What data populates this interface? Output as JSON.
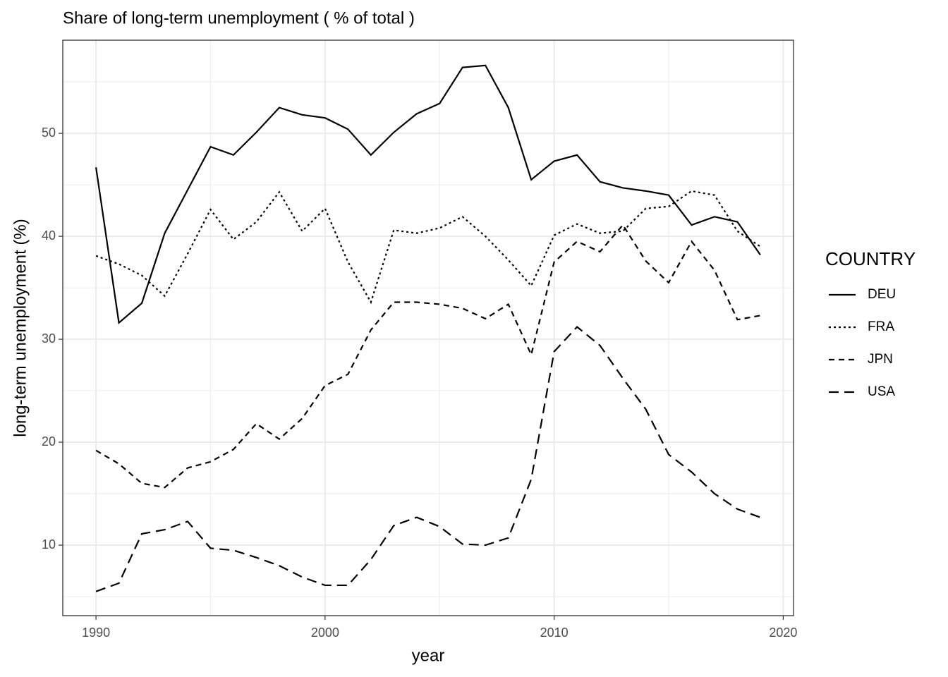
{
  "chart_data": {
    "type": "line",
    "title": "Share of long-term unemployment ( % of total )",
    "x_label": "year",
    "y_label": "long-term unemployment (%)",
    "legend_title": "COUNTRY",
    "legend_position": "right",
    "grid": true,
    "x": [
      1990,
      1991,
      1992,
      1993,
      1994,
      1995,
      1996,
      1997,
      1998,
      1999,
      2000,
      2001,
      2002,
      2003,
      2004,
      2005,
      2006,
      2007,
      2008,
      2009,
      2010,
      2011,
      2012,
      2013,
      2014,
      2015,
      2016,
      2017,
      2018,
      2019
    ],
    "xlim": [
      1988.55,
      2020.45
    ],
    "xticks": [
      1990,
      2000,
      2010,
      2020
    ],
    "xminor": [
      1995,
      2005,
      2015
    ],
    "ylim": [
      3.15,
      59.05
    ],
    "yticks": [
      10,
      20,
      30,
      40,
      50
    ],
    "yminor": [
      5,
      15,
      25,
      35,
      45,
      55
    ],
    "series": [
      {
        "name": "DEU",
        "color": "#000000",
        "dash": "solid",
        "values": [
          46.7,
          31.6,
          33.5,
          40.3,
          44.5,
          48.7,
          47.9,
          50.1,
          52.5,
          51.8,
          51.5,
          50.4,
          47.9,
          50.1,
          51.9,
          52.9,
          56.4,
          56.6,
          52.5,
          45.5,
          47.3,
          47.9,
          45.3,
          44.7,
          44.4,
          44.0,
          41.1,
          41.9,
          41.4,
          38.2
        ]
      },
      {
        "name": "FRA",
        "color": "#000000",
        "dash": "dotted",
        "values": [
          38.1,
          37.3,
          36.2,
          34.2,
          38.3,
          42.6,
          39.7,
          41.4,
          44.3,
          40.5,
          42.7,
          37.5,
          33.6,
          40.6,
          40.3,
          40.8,
          41.9,
          40.0,
          37.7,
          35.2,
          40.1,
          41.2,
          40.3,
          40.5,
          42.7,
          42.9,
          44.4,
          44.0,
          40.5,
          39.0
        ]
      },
      {
        "name": "JPN",
        "color": "#000000",
        "dash": "dashed",
        "values": [
          19.2,
          17.9,
          16.0,
          15.6,
          17.5,
          18.1,
          19.3,
          21.8,
          20.3,
          22.3,
          25.5,
          26.6,
          30.9,
          33.6,
          33.6,
          33.4,
          33.0,
          32.0,
          33.4,
          28.5,
          37.5,
          39.5,
          38.5,
          41.1,
          37.6,
          35.5,
          39.5,
          36.7,
          31.9,
          32.3
        ]
      },
      {
        "name": "USA",
        "color": "#000000",
        "dash": "longdash",
        "values": [
          5.5,
          6.3,
          11.1,
          11.5,
          12.3,
          9.7,
          9.5,
          8.8,
          8.0,
          6.9,
          6.1,
          6.1,
          8.6,
          11.9,
          12.7,
          11.8,
          10.1,
          10.0,
          10.7,
          16.4,
          28.8,
          31.2,
          29.4,
          26.2,
          23.2,
          18.8,
          17.1,
          15.0,
          13.5,
          12.7
        ]
      }
    ]
  }
}
